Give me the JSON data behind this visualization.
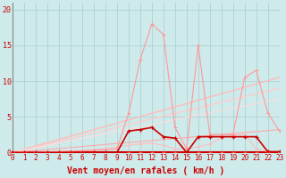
{
  "background_color": "#ceeaea",
  "grid_color": "#aacccc",
  "xlabel": "Vent moyen/en rafales ( km/h )",
  "xlabel_color": "#cc0000",
  "xlabel_fontsize": 7,
  "ylabel_ticks": [
    0,
    5,
    10,
    15,
    20
  ],
  "xmin": 0,
  "xmax": 23,
  "ymin": 0,
  "ymax": 21,
  "x_vals": [
    0,
    1,
    2,
    3,
    4,
    5,
    6,
    7,
    8,
    9,
    10,
    11,
    12,
    13,
    14,
    15,
    16,
    17,
    18,
    19,
    20,
    21,
    22,
    23
  ],
  "series_light_pink": [
    0,
    0,
    0,
    0,
    0.1,
    0.2,
    0.2,
    0.3,
    0.4,
    0.5,
    5.5,
    13,
    18,
    16.5,
    3.5,
    0.5,
    15,
    2.5,
    2.5,
    2.5,
    10.5,
    11.5,
    5.5,
    3
  ],
  "series_dark_red": [
    0,
    0,
    0,
    0,
    0,
    0,
    0,
    0,
    0,
    0,
    3,
    3.2,
    3.5,
    2.2,
    2.0,
    0,
    2.2,
    2.2,
    2.2,
    2.2,
    2.2,
    2.2,
    0.1,
    0.1
  ],
  "series_medium_pink": [
    0,
    0,
    0.05,
    0.1,
    0.15,
    0.2,
    0.3,
    0.4,
    0.5,
    0.8,
    1.0,
    1.2,
    1.3,
    1.0,
    0.5,
    0.5,
    0.8,
    1.2,
    2.0,
    2.5,
    2.5,
    0.5,
    0.1,
    0.05
  ],
  "series_near_zero": [
    0,
    0,
    0,
    0,
    0,
    0,
    0,
    0,
    0,
    0,
    0,
    0,
    0,
    0,
    0,
    0,
    0,
    0,
    0,
    0,
    0,
    0,
    0,
    0
  ],
  "linear_lines": [
    {
      "slope_end": 10.5,
      "color": "#ffbbbb",
      "lw": 1.0
    },
    {
      "slope_end": 9.0,
      "color": "#ffcccc",
      "lw": 1.0
    },
    {
      "slope_end": 7.5,
      "color": "#ffdddd",
      "lw": 0.8
    },
    {
      "slope_end": 3.2,
      "color": "#ffaaaa",
      "lw": 0.8
    }
  ],
  "tick_color": "#cc0000",
  "tick_fontsize": 5.5
}
